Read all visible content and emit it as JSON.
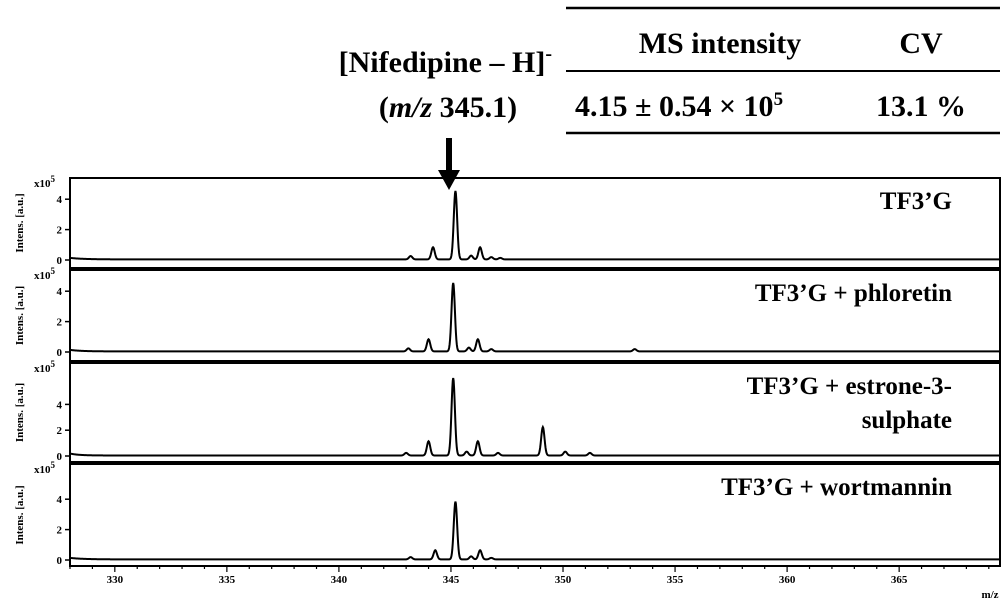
{
  "annotation": {
    "ion_prefix": "[Nifedipine – H]",
    "ion_charge": "-",
    "mz_open": "(",
    "mz_italic": "m/z",
    "mz_value": " 345.1)"
  },
  "summary_table": {
    "headers": [
      "MS intensity",
      "CV"
    ],
    "intensity_main": "4.15 ± 0.54 × 10",
    "intensity_exp": "5",
    "cv": "13.1 %"
  },
  "chart_data": {
    "type": "line",
    "x_label": "m/z",
    "x_range": [
      328.0,
      369.5
    ],
    "x_ticks": [
      "330",
      "335",
      "340",
      "345",
      "350",
      "355",
      "360",
      "365"
    ],
    "y_label": "Intens. [a.u.]",
    "y_unit_prefix": "x10",
    "y_unit_exp": "5",
    "y_ticks": [
      "0",
      "2",
      "4"
    ],
    "y_range": [
      0,
      5.5
    ],
    "panels": [
      {
        "label_lines": [
          "TF3’G"
        ],
        "baseline": [
          0.1,
          0.6
        ],
        "peaks": [
          [
            343.2,
            0.22
          ],
          [
            344.2,
            0.8
          ],
          [
            345.2,
            4.5
          ],
          [
            345.9,
            0.25
          ],
          [
            346.3,
            0.8
          ],
          [
            346.8,
            0.15
          ],
          [
            347.2,
            0.1
          ]
        ]
      },
      {
        "label_lines": [
          "TF3’G + phloretin"
        ],
        "baseline": [
          0.1,
          0.5
        ],
        "peaks": [
          [
            343.1,
            0.2
          ],
          [
            344.0,
            0.8
          ],
          [
            345.1,
            4.5
          ],
          [
            345.8,
            0.25
          ],
          [
            346.2,
            0.8
          ],
          [
            346.8,
            0.15
          ],
          [
            353.2,
            0.15
          ]
        ]
      },
      {
        "label_lines": [
          "TF3’G + estrone-3-",
          "sulphate"
        ],
        "baseline": [
          0.15,
          0.4
        ],
        "peaks": [
          [
            343.0,
            0.2
          ],
          [
            344.0,
            1.1
          ],
          [
            345.1,
            6.0
          ],
          [
            345.7,
            0.3
          ],
          [
            346.2,
            1.1
          ],
          [
            347.1,
            0.2
          ],
          [
            349.1,
            2.2
          ],
          [
            350.1,
            0.3
          ],
          [
            351.2,
            0.2
          ]
        ]
      },
      {
        "label_lines": [
          "TF3’G + wortmannin"
        ],
        "baseline": [
          0.1,
          0.6
        ],
        "peaks": [
          [
            343.2,
            0.15
          ],
          [
            344.3,
            0.6
          ],
          [
            345.2,
            3.8
          ],
          [
            345.9,
            0.2
          ],
          [
            346.3,
            0.6
          ],
          [
            346.8,
            0.1
          ]
        ]
      }
    ]
  }
}
